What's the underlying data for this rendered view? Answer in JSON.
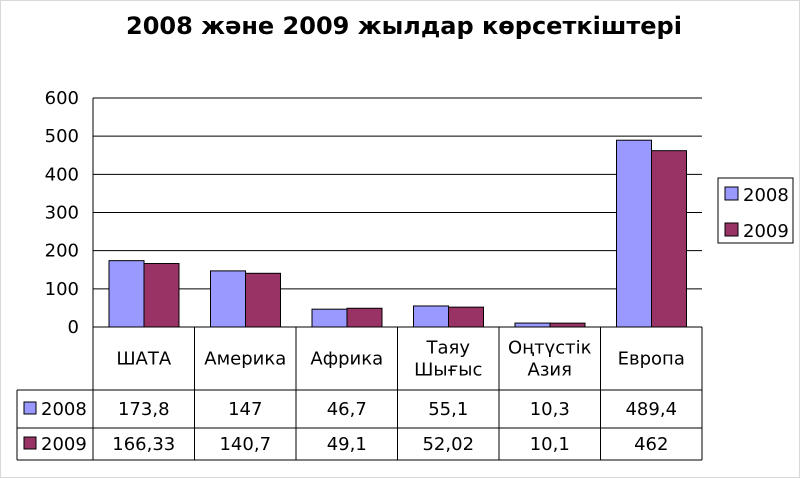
{
  "chart_data": {
    "type": "bar",
    "title": "2008 және 2009 жылдар көрсеткіштері",
    "categories": [
      [
        "ШАТА"
      ],
      [
        "Америка"
      ],
      [
        "Африка"
      ],
      [
        "Таяу",
        "Шығыс"
      ],
      [
        "Оңтүстік",
        "Азия"
      ],
      [
        "Европа"
      ]
    ],
    "series": [
      {
        "name": "2008",
        "values": [
          173.8,
          147,
          46.7,
          55.1,
          10.3,
          489.4
        ],
        "labels": [
          "173,8",
          "147",
          "46,7",
          "55,1",
          "10,3",
          "489,4"
        ],
        "color": "#9999ff"
      },
      {
        "name": "2009",
        "values": [
          166.33,
          140.7,
          49.1,
          52.02,
          10.1,
          462
        ],
        "labels": [
          "166,33",
          "140,7",
          "49,1",
          "52,02",
          "10,1",
          "462"
        ],
        "color": "#993366"
      }
    ],
    "yticks": [
      "0",
      "100",
      "200",
      "300",
      "400",
      "500",
      "600"
    ],
    "ylim": [
      0,
      600
    ],
    "grid": true,
    "legend": "right",
    "data_table": true
  }
}
